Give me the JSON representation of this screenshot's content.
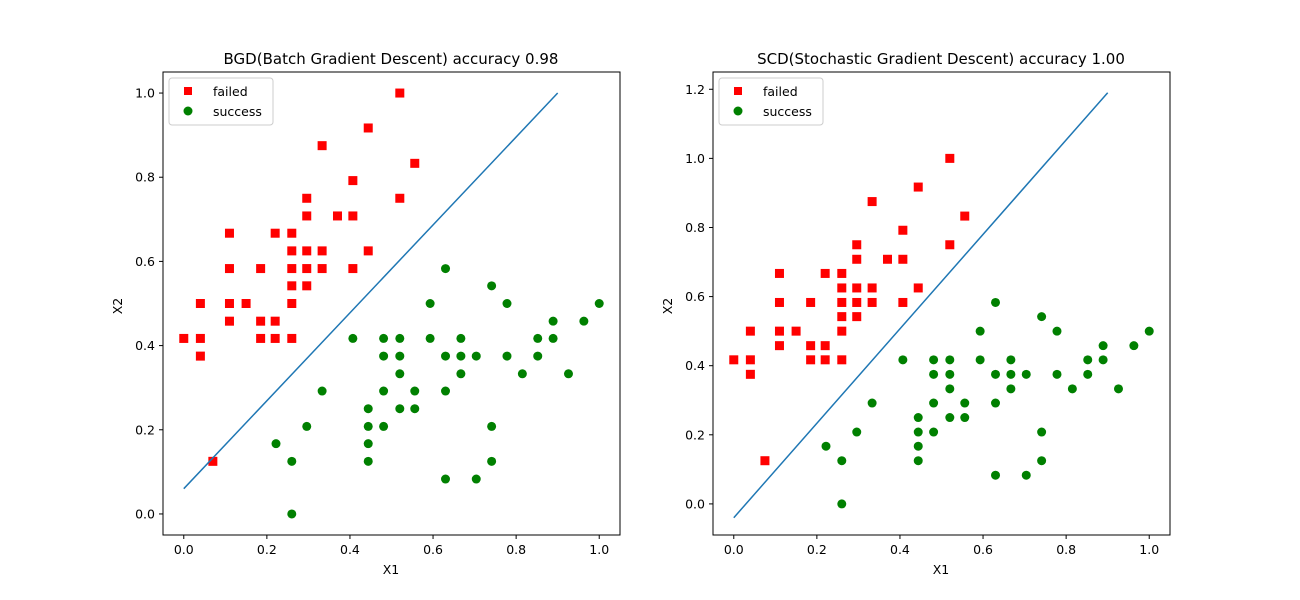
{
  "chart_data": [
    {
      "type": "scatter",
      "title": "BGD(Batch Gradient Descent) accuracy 0.98",
      "xlabel": "X1",
      "ylabel": "X2",
      "xlim": [
        -0.05,
        1.05
      ],
      "ylim": [
        -0.05,
        1.05
      ],
      "xticks": [
        "0.0",
        "0.2",
        "0.4",
        "0.6",
        "0.8",
        "1.0"
      ],
      "yticks": [
        "0.0",
        "0.2",
        "0.4",
        "0.6",
        "0.8",
        "1.0"
      ],
      "grid": false,
      "legend_position": "top-left",
      "series": [
        {
          "name": "failed",
          "marker": "square",
          "color": "#ff0000",
          "points": [
            [
              0.0,
              0.417
            ],
            [
              0.04,
              0.375
            ],
            [
              0.04,
              0.417
            ],
            [
              0.04,
              0.5
            ],
            [
              0.07,
              0.125
            ],
            [
              0.11,
              0.458
            ],
            [
              0.11,
              0.5
            ],
            [
              0.11,
              0.583
            ],
            [
              0.11,
              0.667
            ],
            [
              0.15,
              0.5
            ],
            [
              0.185,
              0.417
            ],
            [
              0.185,
              0.458
            ],
            [
              0.185,
              0.583
            ],
            [
              0.22,
              0.417
            ],
            [
              0.22,
              0.458
            ],
            [
              0.22,
              0.667
            ],
            [
              0.26,
              0.417
            ],
            [
              0.26,
              0.5
            ],
            [
              0.26,
              0.542
            ],
            [
              0.26,
              0.583
            ],
            [
              0.26,
              0.625
            ],
            [
              0.26,
              0.667
            ],
            [
              0.296,
              0.542
            ],
            [
              0.296,
              0.583
            ],
            [
              0.296,
              0.625
            ],
            [
              0.296,
              0.708
            ],
            [
              0.296,
              0.75
            ],
            [
              0.333,
              0.583
            ],
            [
              0.333,
              0.625
            ],
            [
              0.333,
              0.875
            ],
            [
              0.37,
              0.708
            ],
            [
              0.407,
              0.583
            ],
            [
              0.407,
              0.708
            ],
            [
              0.407,
              0.792
            ],
            [
              0.444,
              0.625
            ],
            [
              0.444,
              0.917
            ],
            [
              0.52,
              0.75
            ],
            [
              0.52,
              1.0
            ],
            [
              0.556,
              0.833
            ]
          ]
        },
        {
          "name": "success",
          "marker": "circle",
          "color": "#008000",
          "points": [
            [
              0.222,
              0.167
            ],
            [
              0.26,
              0.125
            ],
            [
              0.26,
              0.0
            ],
            [
              0.296,
              0.208
            ],
            [
              0.333,
              0.292
            ],
            [
              0.407,
              0.417
            ],
            [
              0.444,
              0.125
            ],
            [
              0.444,
              0.167
            ],
            [
              0.444,
              0.208
            ],
            [
              0.444,
              0.25
            ],
            [
              0.481,
              0.208
            ],
            [
              0.481,
              0.292
            ],
            [
              0.481,
              0.375
            ],
            [
              0.481,
              0.417
            ],
            [
              0.52,
              0.25
            ],
            [
              0.52,
              0.333
            ],
            [
              0.52,
              0.375
            ],
            [
              0.52,
              0.417
            ],
            [
              0.556,
              0.25
            ],
            [
              0.556,
              0.292
            ],
            [
              0.593,
              0.417
            ],
            [
              0.593,
              0.5
            ],
            [
              0.63,
              0.083
            ],
            [
              0.63,
              0.292
            ],
            [
              0.63,
              0.375
            ],
            [
              0.63,
              0.583
            ],
            [
              0.667,
              0.333
            ],
            [
              0.667,
              0.375
            ],
            [
              0.667,
              0.417
            ],
            [
              0.704,
              0.083
            ],
            [
              0.704,
              0.375
            ],
            [
              0.741,
              0.125
            ],
            [
              0.741,
              0.208
            ],
            [
              0.741,
              0.542
            ],
            [
              0.778,
              0.375
            ],
            [
              0.778,
              0.5
            ],
            [
              0.815,
              0.333
            ],
            [
              0.852,
              0.375
            ],
            [
              0.852,
              0.417
            ],
            [
              0.889,
              0.417
            ],
            [
              0.889,
              0.458
            ],
            [
              0.926,
              0.333
            ],
            [
              0.963,
              0.458
            ],
            [
              1.0,
              0.5
            ]
          ]
        }
      ],
      "decision_line": {
        "color": "#1f77b4",
        "x": [
          0.0,
          0.9
        ],
        "y": [
          0.06,
          1.0
        ]
      }
    },
    {
      "type": "scatter",
      "title": "SCD(Stochastic Gradient Descent) accuracy 1.00",
      "xlabel": "X1",
      "ylabel": "X2",
      "xlim": [
        -0.05,
        1.05
      ],
      "ylim": [
        -0.09,
        1.25
      ],
      "xticks": [
        "0.0",
        "0.2",
        "0.4",
        "0.6",
        "0.8",
        "1.0"
      ],
      "yticks": [
        "0.0",
        "0.2",
        "0.4",
        "0.6",
        "0.8",
        "1.0",
        "1.2"
      ],
      "grid": false,
      "legend_position": "top-left",
      "series": [
        {
          "name": "failed",
          "marker": "square",
          "color": "#ff0000",
          "points": [
            [
              0.0,
              0.417
            ],
            [
              0.04,
              0.375
            ],
            [
              0.04,
              0.417
            ],
            [
              0.04,
              0.5
            ],
            [
              0.075,
              0.125
            ],
            [
              0.11,
              0.458
            ],
            [
              0.11,
              0.5
            ],
            [
              0.11,
              0.583
            ],
            [
              0.11,
              0.667
            ],
            [
              0.15,
              0.5
            ],
            [
              0.185,
              0.417
            ],
            [
              0.185,
              0.458
            ],
            [
              0.185,
              0.583
            ],
            [
              0.22,
              0.417
            ],
            [
              0.22,
              0.458
            ],
            [
              0.22,
              0.667
            ],
            [
              0.26,
              0.417
            ],
            [
              0.26,
              0.5
            ],
            [
              0.26,
              0.542
            ],
            [
              0.26,
              0.583
            ],
            [
              0.26,
              0.625
            ],
            [
              0.26,
              0.667
            ],
            [
              0.296,
              0.542
            ],
            [
              0.296,
              0.583
            ],
            [
              0.296,
              0.625
            ],
            [
              0.296,
              0.708
            ],
            [
              0.296,
              0.75
            ],
            [
              0.333,
              0.583
            ],
            [
              0.333,
              0.625
            ],
            [
              0.333,
              0.875
            ],
            [
              0.37,
              0.708
            ],
            [
              0.407,
              0.583
            ],
            [
              0.407,
              0.708
            ],
            [
              0.407,
              0.792
            ],
            [
              0.444,
              0.625
            ],
            [
              0.444,
              0.917
            ],
            [
              0.52,
              0.75
            ],
            [
              0.52,
              1.0
            ],
            [
              0.556,
              0.833
            ]
          ]
        },
        {
          "name": "success",
          "marker": "circle",
          "color": "#008000",
          "points": [
            [
              0.222,
              0.167
            ],
            [
              0.26,
              0.125
            ],
            [
              0.26,
              0.0
            ],
            [
              0.296,
              0.208
            ],
            [
              0.333,
              0.292
            ],
            [
              0.407,
              0.417
            ],
            [
              0.444,
              0.125
            ],
            [
              0.444,
              0.167
            ],
            [
              0.444,
              0.208
            ],
            [
              0.444,
              0.25
            ],
            [
              0.481,
              0.208
            ],
            [
              0.481,
              0.292
            ],
            [
              0.481,
              0.375
            ],
            [
              0.481,
              0.417
            ],
            [
              0.52,
              0.25
            ],
            [
              0.52,
              0.333
            ],
            [
              0.52,
              0.375
            ],
            [
              0.52,
              0.417
            ],
            [
              0.556,
              0.25
            ],
            [
              0.556,
              0.292
            ],
            [
              0.593,
              0.417
            ],
            [
              0.593,
              0.5
            ],
            [
              0.63,
              0.083
            ],
            [
              0.63,
              0.292
            ],
            [
              0.63,
              0.375
            ],
            [
              0.63,
              0.583
            ],
            [
              0.667,
              0.333
            ],
            [
              0.667,
              0.375
            ],
            [
              0.667,
              0.417
            ],
            [
              0.704,
              0.083
            ],
            [
              0.704,
              0.375
            ],
            [
              0.741,
              0.125
            ],
            [
              0.741,
              0.208
            ],
            [
              0.741,
              0.542
            ],
            [
              0.778,
              0.375
            ],
            [
              0.778,
              0.5
            ],
            [
              0.815,
              0.333
            ],
            [
              0.852,
              0.375
            ],
            [
              0.852,
              0.417
            ],
            [
              0.889,
              0.417
            ],
            [
              0.889,
              0.458
            ],
            [
              0.926,
              0.333
            ],
            [
              0.963,
              0.458
            ],
            [
              1.0,
              0.5
            ]
          ]
        }
      ],
      "decision_line": {
        "color": "#1f77b4",
        "x": [
          0.0,
          0.9
        ],
        "y": [
          -0.04,
          1.19
        ]
      }
    }
  ]
}
